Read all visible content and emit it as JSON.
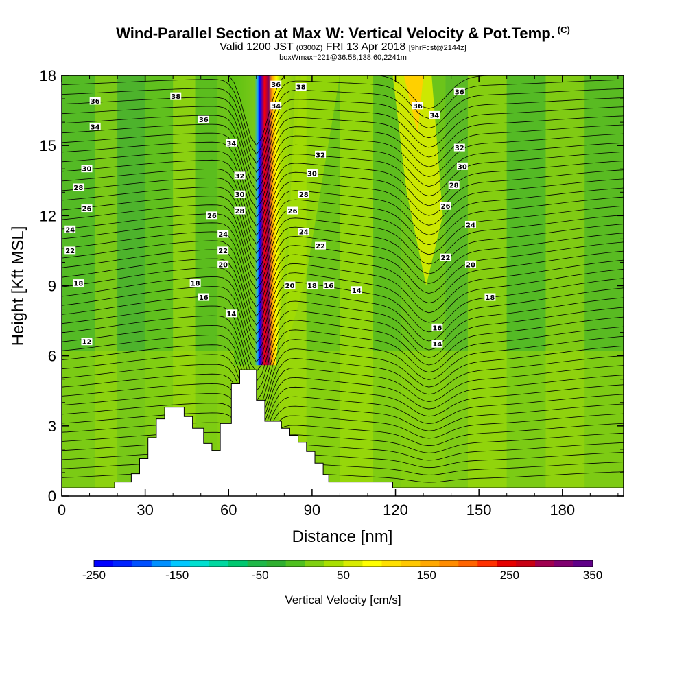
{
  "header": {
    "title": "Wind-Parallel Section at Max W: Vertical Velocity & Pot.Temp.",
    "title_mark": "(C)",
    "valid_a": "Valid 1200 JST",
    "valid_utc": "(0300Z)",
    "valid_b": "FRI 13 Apr 2018",
    "forecast": "[9hrFcst@2144z]",
    "boxinfo": "boxWmax=221@36.58,138.60,2241m"
  },
  "chart_data": {
    "type": "heatmap",
    "xlabel": "Distance [nm]",
    "ylabel": "Height [Kft MSL]",
    "xlim": [
      0,
      202
    ],
    "ylim": [
      0,
      18
    ],
    "x_ticks": [
      "0",
      "30",
      "60",
      "90",
      "120",
      "150",
      "180"
    ],
    "y_ticks": [
      "0",
      "3",
      "6",
      "9",
      "12",
      "15",
      "18"
    ],
    "colorbar": {
      "label": "Vertical Velocity [cm/s]",
      "tick_labels": [
        "-250",
        "-150",
        "-50",
        "50",
        "150",
        "250",
        "350"
      ],
      "ticks": [
        -250,
        -150,
        -50,
        50,
        150,
        250,
        350
      ],
      "range": [
        -250,
        350
      ],
      "colors": [
        "#0000ff",
        "#0022ff",
        "#0050ff",
        "#0090ff",
        "#00c8ff",
        "#00e0d0",
        "#00d8a0",
        "#00c870",
        "#20b848",
        "#30b030",
        "#50c020",
        "#80d010",
        "#a8e000",
        "#d8ec00",
        "#ffff00",
        "#ffe000",
        "#ffc800",
        "#ffa800",
        "#ff8c00",
        "#ff6400",
        "#ff3000",
        "#e60000",
        "#c80014",
        "#a00050",
        "#800070",
        "#600088"
      ]
    },
    "terrain": [
      [
        0,
        0.35
      ],
      [
        19,
        0.35
      ],
      [
        19,
        0.6
      ],
      [
        25,
        0.6
      ],
      [
        25,
        0.95
      ],
      [
        28,
        0.95
      ],
      [
        28,
        1.6
      ],
      [
        31,
        1.6
      ],
      [
        31,
        2.5
      ],
      [
        34,
        2.5
      ],
      [
        34,
        3.3
      ],
      [
        37,
        3.3
      ],
      [
        37,
        3.8
      ],
      [
        44,
        3.8
      ],
      [
        44,
        3.4
      ],
      [
        47,
        3.4
      ],
      [
        47,
        2.9
      ],
      [
        51,
        2.9
      ],
      [
        51,
        2.25
      ],
      [
        54,
        2.25
      ],
      [
        54,
        1.95
      ],
      [
        57,
        1.95
      ],
      [
        57,
        3.1
      ],
      [
        61,
        3.1
      ],
      [
        61,
        4.8
      ],
      [
        64,
        4.8
      ],
      [
        64,
        5.4
      ],
      [
        70,
        5.4
      ],
      [
        70,
        4.1
      ],
      [
        73,
        4.1
      ],
      [
        73,
        3.2
      ],
      [
        79,
        3.2
      ],
      [
        79,
        2.9
      ],
      [
        82,
        2.9
      ],
      [
        82,
        2.6
      ],
      [
        85,
        2.6
      ],
      [
        85,
        2.3
      ],
      [
        88,
        2.3
      ],
      [
        88,
        1.9
      ],
      [
        91,
        1.9
      ],
      [
        91,
        1.4
      ],
      [
        94,
        1.4
      ],
      [
        94,
        0.9
      ],
      [
        96,
        0.9
      ],
      [
        96,
        0.6
      ],
      [
        119,
        0.6
      ],
      [
        119,
        0.35
      ],
      [
        202,
        0.35
      ]
    ],
    "contour_labels": [
      {
        "text": "36",
        "x": 12,
        "y": 16.9
      },
      {
        "text": "34",
        "x": 12,
        "y": 15.8
      },
      {
        "text": "30",
        "x": 9,
        "y": 14.0
      },
      {
        "text": "28",
        "x": 6,
        "y": 13.2
      },
      {
        "text": "26",
        "x": 9,
        "y": 12.3
      },
      {
        "text": "24",
        "x": 3,
        "y": 11.4
      },
      {
        "text": "22",
        "x": 3,
        "y": 10.5
      },
      {
        "text": "18",
        "x": 6,
        "y": 9.1
      },
      {
        "text": "12",
        "x": 9,
        "y": 6.6
      },
      {
        "text": "38",
        "x": 41,
        "y": 17.1
      },
      {
        "text": "36",
        "x": 51,
        "y": 16.1
      },
      {
        "text": "34",
        "x": 61,
        "y": 15.1
      },
      {
        "text": "32",
        "x": 64,
        "y": 13.7
      },
      {
        "text": "30",
        "x": 64,
        "y": 12.9
      },
      {
        "text": "28",
        "x": 64,
        "y": 12.2
      },
      {
        "text": "26",
        "x": 54,
        "y": 12.0
      },
      {
        "text": "24",
        "x": 58,
        "y": 11.2
      },
      {
        "text": "22",
        "x": 58,
        "y": 10.5
      },
      {
        "text": "20",
        "x": 58,
        "y": 9.9
      },
      {
        "text": "18",
        "x": 48,
        "y": 9.1
      },
      {
        "text": "16",
        "x": 51,
        "y": 8.5
      },
      {
        "text": "14",
        "x": 61,
        "y": 7.8
      },
      {
        "text": "36",
        "x": 77,
        "y": 17.6
      },
      {
        "text": "38",
        "x": 86,
        "y": 17.5
      },
      {
        "text": "34",
        "x": 77,
        "y": 16.7
      },
      {
        "text": "32",
        "x": 93,
        "y": 14.6
      },
      {
        "text": "30",
        "x": 90,
        "y": 13.8
      },
      {
        "text": "28",
        "x": 87,
        "y": 12.9
      },
      {
        "text": "26",
        "x": 83,
        "y": 12.2
      },
      {
        "text": "24",
        "x": 87,
        "y": 11.3
      },
      {
        "text": "22",
        "x": 93,
        "y": 10.7
      },
      {
        "text": "20",
        "x": 82,
        "y": 9.0
      },
      {
        "text": "18",
        "x": 90,
        "y": 9.0
      },
      {
        "text": "16",
        "x": 96,
        "y": 9.0
      },
      {
        "text": "14",
        "x": 106,
        "y": 8.8
      },
      {
        "text": "36",
        "x": 143,
        "y": 17.3
      },
      {
        "text": "36",
        "x": 128,
        "y": 16.7
      },
      {
        "text": "34",
        "x": 134,
        "y": 16.3
      },
      {
        "text": "32",
        "x": 143,
        "y": 14.9
      },
      {
        "text": "30",
        "x": 144,
        "y": 14.1
      },
      {
        "text": "28",
        "x": 141,
        "y": 13.3
      },
      {
        "text": "26",
        "x": 138,
        "y": 12.4
      },
      {
        "text": "24",
        "x": 147,
        "y": 11.6
      },
      {
        "text": "22",
        "x": 138,
        "y": 10.2
      },
      {
        "text": "20",
        "x": 147,
        "y": 9.9
      },
      {
        "text": "18",
        "x": 154,
        "y": 8.5
      },
      {
        "text": "16",
        "x": 135,
        "y": 7.2
      },
      {
        "text": "14",
        "x": 135,
        "y": 6.5
      }
    ]
  }
}
